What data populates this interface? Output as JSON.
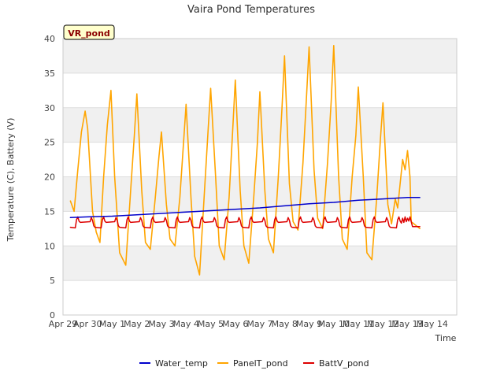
{
  "chart_data": {
    "type": "line",
    "title": "Vaira Pond Temperatures",
    "badge": "VR_pond",
    "xlabel": "Time",
    "ylabel": "Temperature (C), Battery (V)",
    "ylim": [
      0,
      40
    ],
    "yticks": [
      0,
      5,
      10,
      15,
      20,
      25,
      30,
      35,
      40
    ],
    "xlim": [
      0,
      16
    ],
    "xticks": [
      {
        "pos": 0,
        "label": "Apr 29"
      },
      {
        "pos": 1,
        "label": "Apr 30"
      },
      {
        "pos": 2,
        "label": "May 1"
      },
      {
        "pos": 3,
        "label": "May 2"
      },
      {
        "pos": 4,
        "label": "May 3"
      },
      {
        "pos": 5,
        "label": "May 4"
      },
      {
        "pos": 6,
        "label": "May 5"
      },
      {
        "pos": 7,
        "label": "May 6"
      },
      {
        "pos": 8,
        "label": "May 7"
      },
      {
        "pos": 9,
        "label": "May 8"
      },
      {
        "pos": 10,
        "label": "May 9"
      },
      {
        "pos": 11,
        "label": "May 10"
      },
      {
        "pos": 12,
        "label": "May 11"
      },
      {
        "pos": 13,
        "label": "May 12"
      },
      {
        "pos": 14,
        "label": "May 13"
      },
      {
        "pos": 15,
        "label": "May 14"
      }
    ],
    "grid": true,
    "legend_position": "bottom",
    "series": [
      {
        "name": "Water_temp",
        "color": "#0000cc",
        "x": [
          0.3,
          1.0,
          2.0,
          3.0,
          4.0,
          5.0,
          6.0,
          7.0,
          8.0,
          9.0,
          10.0,
          11.0,
          12.0,
          13.0,
          14.0,
          14.5
        ],
        "y": [
          14.1,
          14.2,
          14.3,
          14.5,
          14.7,
          14.9,
          15.1,
          15.3,
          15.5,
          15.8,
          16.1,
          16.3,
          16.6,
          16.8,
          17.0,
          17.0
        ]
      },
      {
        "name": "PanelT_pond",
        "color": "#ffa500",
        "x": [
          0.3,
          0.45,
          0.6,
          0.75,
          0.9,
          1.0,
          1.2,
          1.35,
          1.5,
          1.65,
          1.8,
          1.95,
          2.1,
          2.3,
          2.55,
          2.75,
          2.9,
          3.0,
          3.2,
          3.35,
          3.55,
          3.75,
          3.9,
          4.0,
          4.2,
          4.35,
          4.55,
          4.75,
          4.9,
          5.0,
          5.2,
          5.35,
          5.55,
          5.75,
          5.9,
          6.0,
          6.2,
          6.35,
          6.55,
          6.75,
          6.9,
          7.0,
          7.2,
          7.35,
          7.55,
          7.75,
          7.9,
          8.0,
          8.2,
          8.35,
          8.55,
          8.75,
          8.9,
          9.0,
          9.2,
          9.35,
          9.55,
          9.75,
          9.9,
          10.0,
          10.2,
          10.35,
          10.55,
          10.75,
          10.9,
          11.0,
          11.2,
          11.35,
          11.55,
          11.75,
          11.9,
          12.0,
          12.2,
          12.35,
          12.55,
          12.75,
          12.9,
          13.0,
          13.2,
          13.35,
          13.5,
          13.6,
          13.7,
          13.8,
          13.9,
          14.0,
          14.1,
          14.15,
          14.5
        ],
        "y": [
          16.5,
          15.0,
          21.0,
          26.5,
          29.5,
          27.0,
          15.0,
          12.0,
          10.5,
          20.0,
          27.5,
          32.5,
          20.0,
          9.0,
          7.2,
          18.0,
          26.0,
          32.0,
          18.0,
          10.5,
          9.5,
          17.0,
          23.0,
          26.5,
          16.0,
          11.0,
          10.0,
          17.0,
          25.0,
          30.5,
          17.0,
          8.5,
          5.8,
          18.0,
          27.0,
          32.8,
          20.0,
          10.0,
          8.0,
          17.0,
          27.0,
          34.0,
          18.0,
          10.0,
          7.5,
          17.0,
          25.0,
          32.3,
          18.0,
          11.0,
          9.0,
          20.0,
          30.0,
          37.5,
          19.0,
          13.5,
          12.3,
          22.0,
          32.0,
          38.8,
          21.0,
          14.0,
          12.5,
          22.0,
          31.0,
          39.0,
          20.0,
          11.0,
          9.5,
          20.0,
          26.0,
          33.0,
          20.0,
          9.0,
          8.0,
          17.0,
          25.5,
          30.7,
          16.0,
          13.2,
          16.8,
          15.5,
          19.0,
          22.5,
          21.0,
          23.8,
          20.0,
          13.5,
          12.5
        ]
      },
      {
        "name": "BattV_pond",
        "color": "#dd0000",
        "x": [
          0.3,
          0.5,
          0.55,
          0.6,
          0.65,
          0.7,
          1.1,
          1.15,
          1.2,
          1.25,
          1.3,
          1.55,
          1.6,
          1.65,
          1.7,
          1.75,
          2.1,
          2.15,
          2.2,
          2.25,
          2.3,
          2.55,
          2.6,
          2.65,
          2.7,
          2.75,
          3.1,
          3.15,
          3.2,
          3.25,
          3.3,
          3.55,
          3.6,
          3.65,
          3.7,
          3.75,
          4.1,
          4.15,
          4.2,
          4.25,
          4.3,
          4.55,
          4.6,
          4.65,
          4.7,
          4.75,
          5.1,
          5.15,
          5.2,
          5.25,
          5.3,
          5.55,
          5.6,
          5.65,
          5.7,
          5.75,
          6.1,
          6.15,
          6.2,
          6.25,
          6.3,
          6.55,
          6.6,
          6.65,
          6.7,
          6.75,
          7.1,
          7.15,
          7.2,
          7.25,
          7.3,
          7.55,
          7.6,
          7.65,
          7.7,
          7.75,
          8.1,
          8.15,
          8.2,
          8.25,
          8.3,
          8.55,
          8.6,
          8.65,
          8.7,
          8.75,
          9.1,
          9.15,
          9.2,
          9.25,
          9.3,
          9.55,
          9.6,
          9.65,
          9.7,
          9.75,
          10.1,
          10.15,
          10.2,
          10.25,
          10.3,
          10.55,
          10.6,
          10.65,
          10.7,
          10.75,
          11.1,
          11.15,
          11.2,
          11.25,
          11.3,
          11.55,
          11.6,
          11.65,
          11.7,
          11.75,
          12.1,
          12.15,
          12.2,
          12.25,
          12.3,
          12.55,
          12.6,
          12.65,
          12.7,
          12.75,
          13.1,
          13.15,
          13.2,
          13.25,
          13.3,
          13.55,
          13.6,
          13.65,
          13.7,
          13.75,
          13.8,
          13.85,
          13.9,
          13.95,
          14.0,
          14.05,
          14.1,
          14.2,
          14.5
        ],
        "y": [
          12.7,
          12.6,
          13.8,
          14.2,
          13.6,
          13.4,
          13.5,
          14.1,
          13.7,
          12.9,
          12.7,
          12.6,
          13.8,
          14.2,
          13.6,
          13.4,
          13.5,
          14.1,
          13.7,
          12.9,
          12.7,
          12.6,
          13.8,
          14.2,
          13.6,
          13.4,
          13.5,
          14.1,
          13.7,
          12.9,
          12.7,
          12.6,
          13.8,
          14.2,
          13.6,
          13.4,
          13.5,
          14.1,
          13.7,
          12.9,
          12.7,
          12.6,
          13.8,
          14.2,
          13.6,
          13.4,
          13.5,
          14.1,
          13.7,
          12.9,
          12.7,
          12.6,
          13.8,
          14.2,
          13.6,
          13.4,
          13.5,
          14.1,
          13.7,
          12.9,
          12.7,
          12.6,
          13.8,
          14.2,
          13.6,
          13.4,
          13.5,
          14.1,
          13.7,
          12.9,
          12.7,
          12.6,
          13.8,
          14.2,
          13.6,
          13.4,
          13.5,
          14.1,
          13.7,
          12.9,
          12.7,
          12.6,
          13.8,
          14.2,
          13.6,
          13.4,
          13.5,
          14.1,
          13.7,
          12.9,
          12.7,
          12.6,
          13.8,
          14.2,
          13.6,
          13.4,
          13.5,
          14.1,
          13.7,
          12.9,
          12.7,
          12.6,
          13.8,
          14.2,
          13.6,
          13.4,
          13.5,
          14.1,
          13.7,
          12.9,
          12.7,
          12.6,
          13.8,
          14.2,
          13.6,
          13.4,
          13.5,
          14.1,
          13.7,
          12.9,
          12.7,
          12.6,
          13.8,
          14.2,
          13.6,
          13.4,
          13.5,
          14.1,
          13.7,
          12.9,
          12.7,
          12.6,
          13.8,
          14.2,
          13.6,
          13.3,
          14.0,
          13.4,
          14.2,
          13.5,
          14.0,
          13.6,
          14.2,
          12.8,
          12.8
        ]
      }
    ]
  }
}
